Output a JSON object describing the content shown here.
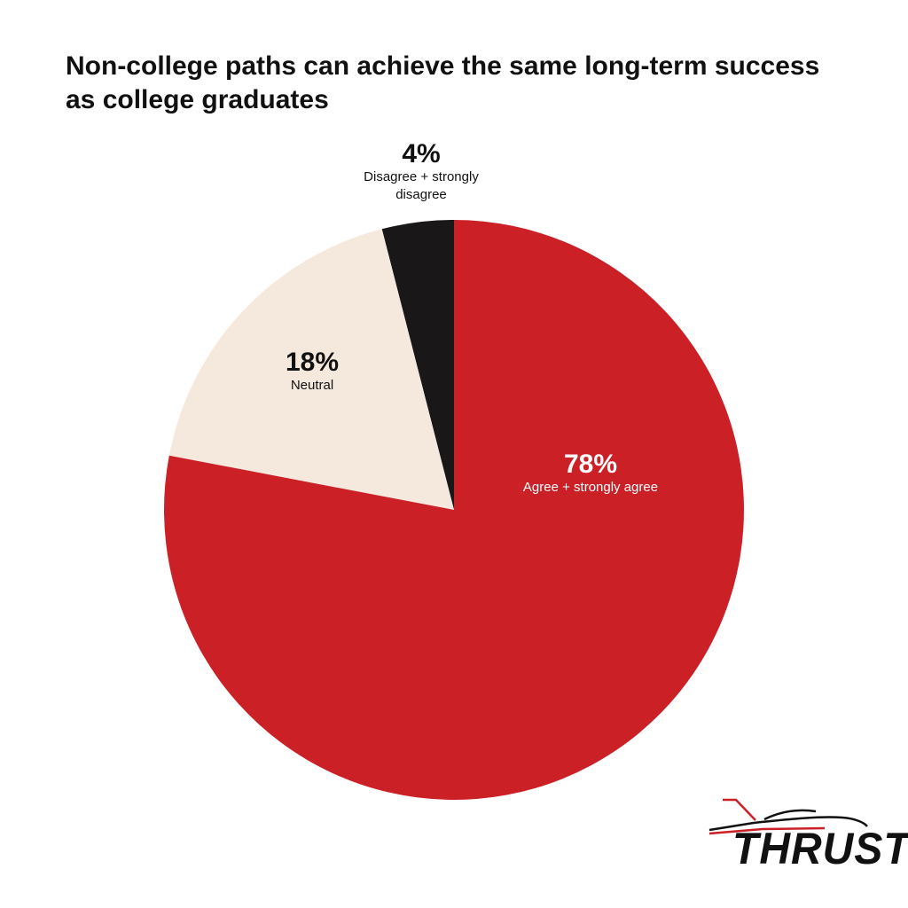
{
  "chart_data": {
    "type": "pie",
    "title": "Non-college paths can achieve the same long-term success as college graduates",
    "categories": [
      "Agree + strongly agree",
      "Neutral",
      "Disagree + strongly disagree"
    ],
    "values": [
      78,
      18,
      4
    ],
    "value_labels": [
      "78%",
      "18%",
      "4%"
    ],
    "colors": [
      "#cc2027",
      "#f5e9de",
      "#1a1718"
    ]
  },
  "logo": "THRUST"
}
